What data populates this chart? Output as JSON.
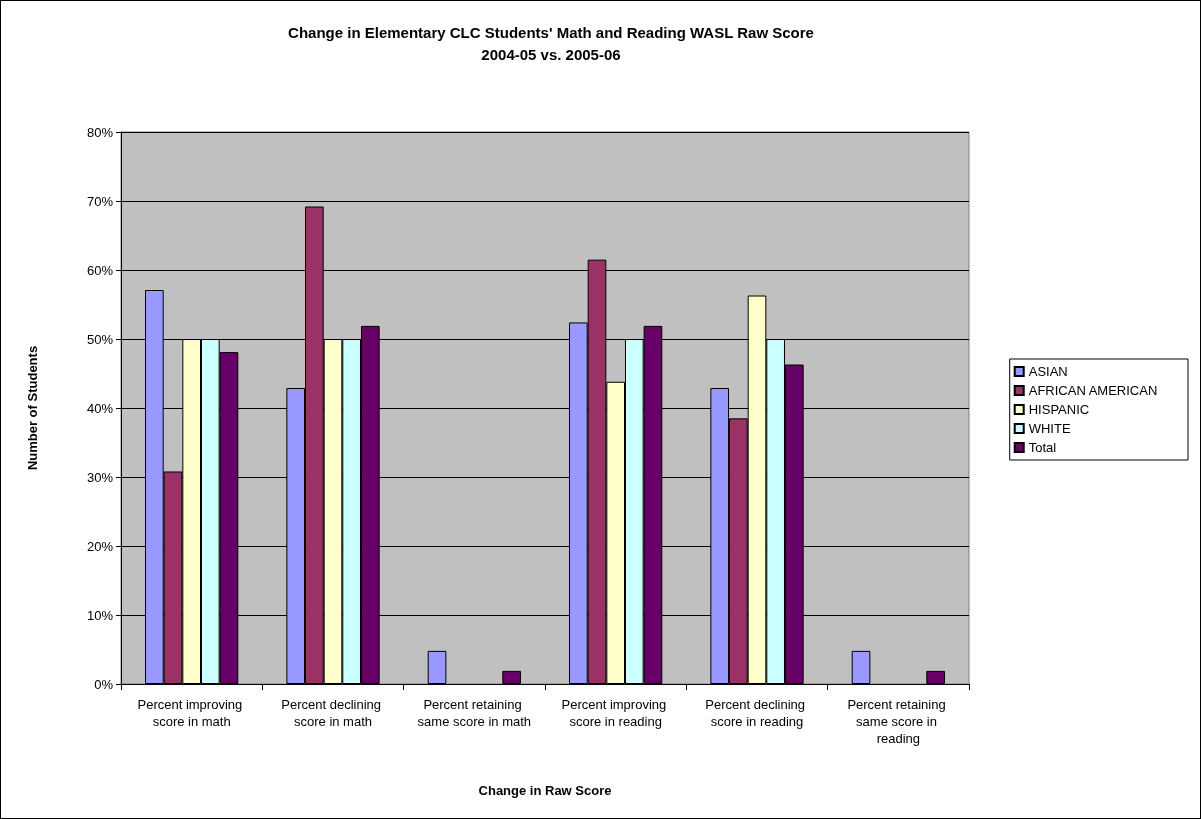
{
  "chart_data": {
    "type": "bar",
    "title": "Change in Elementary CLC Students' Math and Reading WASL Raw Score",
    "subtitle": "2004-05 vs. 2005-06",
    "xlabel": "Change in Raw Score",
    "ylabel": "Number of Students",
    "categories": [
      "Percent improving score in math",
      "Percent declining score in math",
      "Percent retaining same score in math",
      "Percent improving score in reading",
      "Percent declining score in reading",
      "Percent retaining same score in reading"
    ],
    "series": [
      {
        "name": "ASIAN",
        "color": "#9999ff",
        "values": [
          57.1,
          42.9,
          4.8,
          52.4,
          42.9,
          4.8
        ]
      },
      {
        "name": "AFRICAN AMERICAN",
        "color": "#993366",
        "values": [
          30.8,
          69.2,
          0,
          61.5,
          38.5,
          0
        ]
      },
      {
        "name": "HISPANIC",
        "color": "#ffffcc",
        "values": [
          50,
          50,
          0,
          43.8,
          56.3,
          0
        ]
      },
      {
        "name": "WHITE",
        "color": "#ccffff",
        "values": [
          50,
          50,
          0,
          50,
          50,
          0
        ]
      },
      {
        "name": "Total",
        "color": "#660066",
        "values": [
          48.1,
          51.9,
          1.9,
          51.9,
          46.3,
          1.9
        ]
      }
    ],
    "ylim": [
      0,
      80
    ],
    "yticks": [
      {
        "value": 0,
        "label": "0%"
      },
      {
        "value": 10,
        "label": "10%"
      },
      {
        "value": 20,
        "label": "20%"
      },
      {
        "value": 30,
        "label": "30%"
      },
      {
        "value": 40,
        "label": "40%"
      },
      {
        "value": 50,
        "label": "50%"
      },
      {
        "value": 60,
        "label": "60%"
      },
      {
        "value": 70,
        "label": "70%"
      },
      {
        "value": 80,
        "label": "80%"
      }
    ],
    "grid": "y",
    "legend": "right"
  }
}
